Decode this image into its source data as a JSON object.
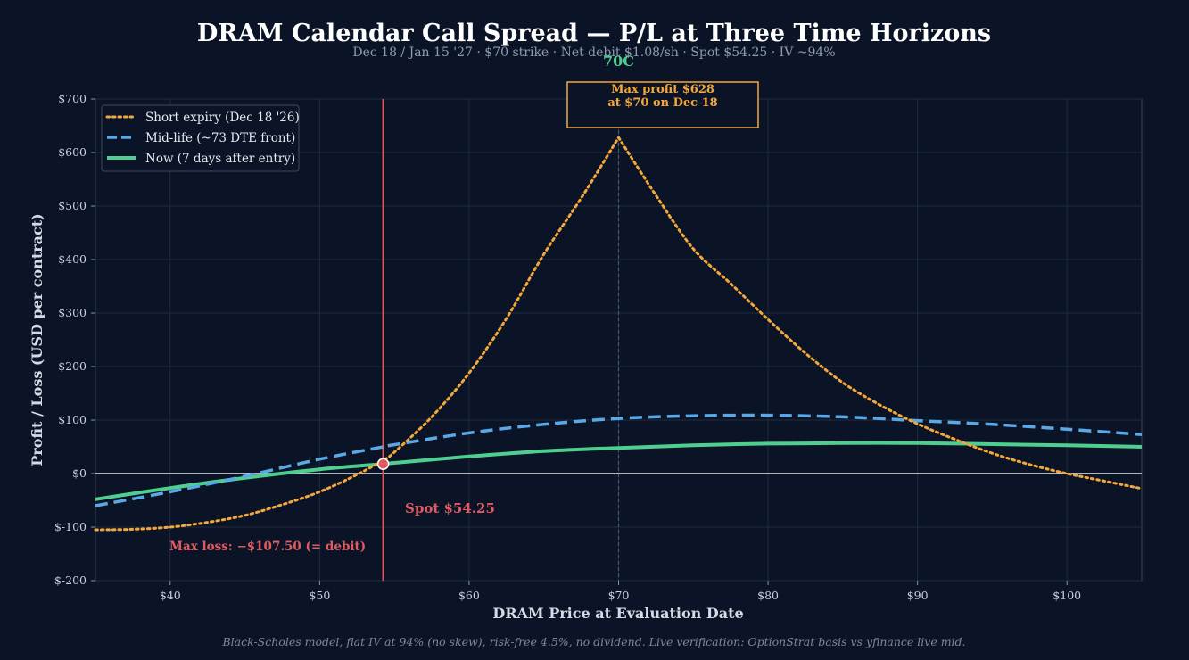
{
  "chart_data": {
    "type": "line",
    "title": "DRAM Calendar Call Spread — P/L at Three Time Horizons",
    "subtitle": "Dec 18 / Jan 15 '27 · $70 strike · Net debit $1.08/sh · Spot $54.25 · IV ~94%",
    "xlabel": "DRAM Price at Evaluation Date",
    "ylabel": "Profit / Loss (USD per contract)",
    "xlim": [
      35,
      105
    ],
    "ylim": [
      -200,
      700
    ],
    "x_ticks": [
      40,
      50,
      60,
      70,
      80,
      90,
      100
    ],
    "x_tick_labels": [
      "$40",
      "$50",
      "$60",
      "$70",
      "$80",
      "$90",
      "$100"
    ],
    "y_ticks": [
      -200,
      -100,
      0,
      100,
      200,
      300,
      400,
      500,
      600,
      700
    ],
    "y_tick_labels": [
      "$-200",
      "$-100",
      "$0",
      "$100",
      "$200",
      "$300",
      "$400",
      "$500",
      "$600",
      "$700"
    ],
    "grid": true,
    "legend_position": "top-left",
    "series": [
      {
        "name": "Short expiry (Dec 18 '26)",
        "color": "#f5a83a",
        "style": "dotted",
        "x": [
          35,
          37.5,
          40,
          42.5,
          45,
          47.5,
          50,
          52.5,
          54.25,
          55,
          57.5,
          60,
          62.5,
          65,
          67.5,
          70,
          72.5,
          75,
          77.5,
          80,
          82.5,
          85,
          87.5,
          90,
          92.5,
          95,
          97.5,
          100,
          102.5,
          105
        ],
        "values": [
          -105,
          -104,
          -100,
          -91,
          -78,
          -58,
          -34,
          -2,
          25,
          40,
          106,
          188,
          290,
          410,
          515,
          628,
          520,
          420,
          355,
          288,
          225,
          170,
          128,
          93,
          64,
          38,
          17,
          0,
          -14,
          -28
        ]
      },
      {
        "name": "Mid-life (~73 DTE front)",
        "color": "#5aa9e6",
        "style": "dashed",
        "x": [
          35,
          40,
          45,
          50,
          54.25,
          55,
          60,
          65,
          70,
          75,
          80,
          85,
          90,
          95,
          100,
          105
        ],
        "values": [
          -60,
          -34,
          -5,
          27,
          50,
          54,
          76,
          92,
          103,
          108,
          109,
          106,
          99,
          92,
          83,
          73
        ]
      },
      {
        "name": "Now (7 days after entry)",
        "color": "#4fcf8f",
        "style": "solid",
        "x": [
          35,
          40,
          45,
          50,
          54.25,
          55,
          60,
          65,
          70,
          75,
          80,
          85,
          90,
          95,
          100,
          105
        ],
        "values": [
          -48,
          -27,
          -8,
          8,
          18,
          20,
          32,
          42,
          48,
          53,
          56,
          57,
          57,
          55,
          53,
          50
        ]
      }
    ],
    "spot": {
      "value": 54.25,
      "pl": 18,
      "label": "Spot $54.25",
      "color": "#e05a5f"
    },
    "strike": {
      "value": 70,
      "label": "70C",
      "color": "#4fcf8f"
    },
    "max_profit": {
      "line1": "Max profit $628",
      "line2": "at $70 on Dec 18",
      "color": "#f5a83a"
    },
    "max_loss": {
      "label": "Max loss: −$107.50 (= debit)",
      "color": "#e05a5f"
    },
    "footnote": "Black-Scholes model, flat IV at 94% (no skew), risk-free 4.5%, no dividend. Live verification: OptionStrat basis vs yfinance live mid."
  }
}
